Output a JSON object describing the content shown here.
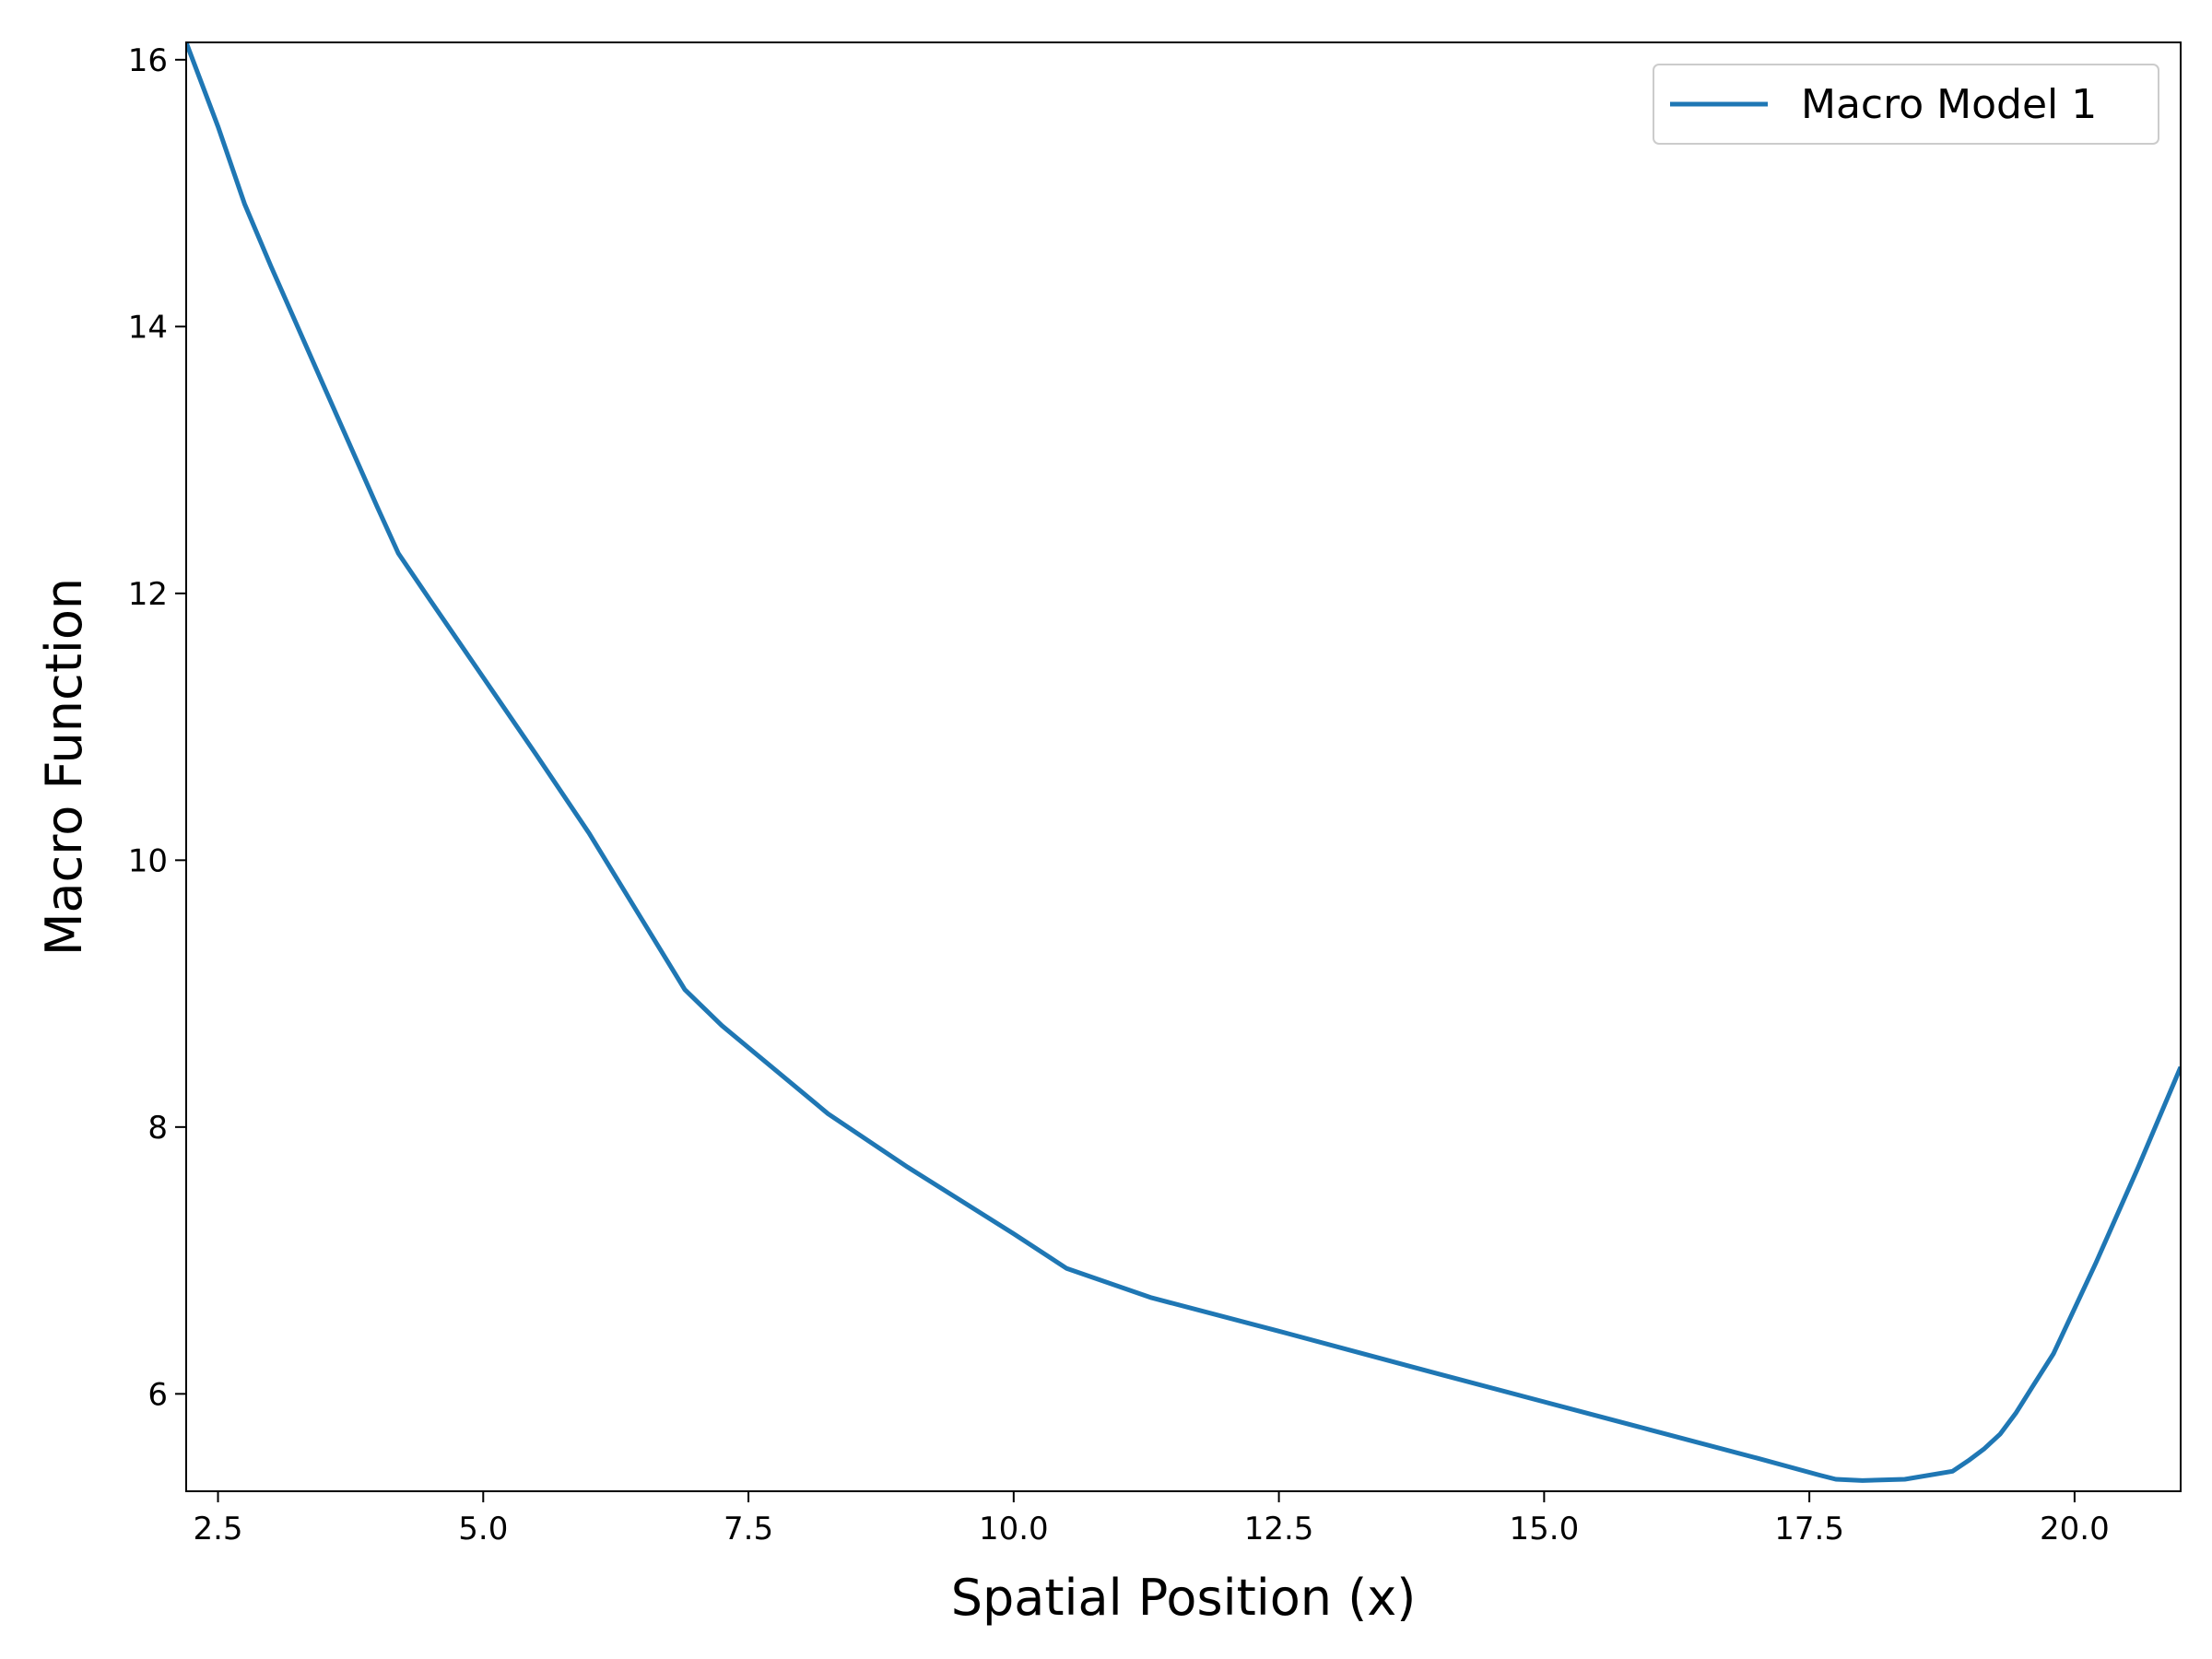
{
  "chart_data": {
    "type": "line",
    "xlabel": "Spatial Position (x)",
    "ylabel": "Macro Function",
    "xlim": [
      2.2,
      21.0
    ],
    "ylim": [
      5.27,
      16.13
    ],
    "xticks": [
      {
        "value": 2.5,
        "label": "2.5"
      },
      {
        "value": 5.0,
        "label": "5.0"
      },
      {
        "value": 7.5,
        "label": "7.5"
      },
      {
        "value": 10.0,
        "label": "10.0"
      },
      {
        "value": 12.5,
        "label": "12.5"
      },
      {
        "value": 15.0,
        "label": "15.0"
      },
      {
        "value": 17.5,
        "label": "17.5"
      },
      {
        "value": 20.0,
        "label": "20.0"
      }
    ],
    "yticks": [
      {
        "value": 6,
        "label": "6"
      },
      {
        "value": 8,
        "label": "8"
      },
      {
        "value": 10,
        "label": "10"
      },
      {
        "value": 12,
        "label": "12"
      },
      {
        "value": 14,
        "label": "14"
      },
      {
        "value": 16,
        "label": "16"
      }
    ],
    "grid": false,
    "legend_position": "top-right",
    "series": [
      {
        "name": "Macro Model 1",
        "color": "#1f77b4",
        "points": [
          [
            2.2,
            16.13
          ],
          [
            2.5,
            15.5
          ],
          [
            2.75,
            14.92
          ],
          [
            3.0,
            14.45
          ],
          [
            3.5,
            13.55
          ],
          [
            4.0,
            12.65
          ],
          [
            4.2,
            12.3
          ],
          [
            4.5,
            11.95
          ],
          [
            5.0,
            11.37
          ],
          [
            5.5,
            10.79
          ],
          [
            6.0,
            10.2
          ],
          [
            6.5,
            9.55
          ],
          [
            6.9,
            9.03
          ],
          [
            7.25,
            8.76
          ],
          [
            8.25,
            8.1
          ],
          [
            9.0,
            7.7
          ],
          [
            10.0,
            7.2
          ],
          [
            10.5,
            6.94
          ],
          [
            11.3,
            6.72
          ],
          [
            12.5,
            6.47
          ],
          [
            14.0,
            6.15
          ],
          [
            15.0,
            5.94
          ],
          [
            16.0,
            5.73
          ],
          [
            17.0,
            5.52
          ],
          [
            17.6,
            5.39
          ],
          [
            17.75,
            5.36
          ],
          [
            18.0,
            5.35
          ],
          [
            18.4,
            5.36
          ],
          [
            18.85,
            5.42
          ],
          [
            19.0,
            5.5
          ],
          [
            19.15,
            5.59
          ],
          [
            19.3,
            5.7
          ],
          [
            19.45,
            5.86
          ],
          [
            19.6,
            6.05
          ],
          [
            19.8,
            6.3
          ],
          [
            20.2,
            6.98
          ],
          [
            20.6,
            7.7
          ],
          [
            21.0,
            8.45
          ]
        ]
      }
    ]
  }
}
